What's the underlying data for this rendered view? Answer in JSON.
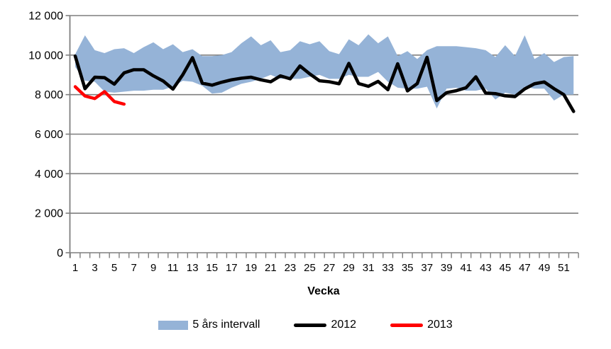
{
  "chart_data": {
    "type": "line",
    "title": "",
    "xlabel": "Vecka",
    "ylabel": "",
    "x_unit": "week",
    "x_range": [
      1,
      52
    ],
    "x_tick_labels": [
      "1",
      "3",
      "5",
      "7",
      "9",
      "11",
      "13",
      "15",
      "17",
      "19",
      "21",
      "23",
      "25",
      "27",
      "29",
      "31",
      "33",
      "35",
      "37",
      "39",
      "41",
      "43",
      "45",
      "47",
      "49",
      "51"
    ],
    "ylim": [
      0,
      12000
    ],
    "y_ticks": [
      {
        "value": 0,
        "label": "0"
      },
      {
        "value": 2000,
        "label": "2 000"
      },
      {
        "value": 4000,
        "label": "4 000"
      },
      {
        "value": 6000,
        "label": "6 000"
      },
      {
        "value": 8000,
        "label": "8 000"
      },
      {
        "value": 10000,
        "label": "10 000"
      },
      {
        "value": 12000,
        "label": "12 000"
      }
    ],
    "grid": true,
    "gridline_color": "#7F7F7F",
    "legend_position": "bottom",
    "series": [
      {
        "name": "5 års intervall",
        "type": "band",
        "color": "#95B3D7",
        "weeks": [
          1,
          2,
          3,
          4,
          5,
          6,
          7,
          8,
          9,
          10,
          11,
          12,
          13,
          14,
          15,
          16,
          17,
          18,
          19,
          20,
          21,
          22,
          23,
          24,
          25,
          26,
          27,
          28,
          29,
          30,
          31,
          32,
          33,
          34,
          35,
          36,
          37,
          38,
          39,
          40,
          41,
          42,
          43,
          44,
          45,
          46,
          47,
          48,
          49,
          50,
          51,
          52
        ],
        "lower": [
          9400,
          8700,
          8650,
          8150,
          8100,
          8150,
          8200,
          8200,
          8250,
          8250,
          8400,
          8700,
          8650,
          8450,
          8050,
          8100,
          8350,
          8550,
          8650,
          8800,
          9000,
          8800,
          8800,
          8800,
          8900,
          9000,
          8800,
          8800,
          9000,
          8900,
          8900,
          9150,
          8650,
          8350,
          8300,
          8300,
          8400,
          7300,
          8300,
          8350,
          8200,
          8200,
          8300,
          7750,
          8100,
          8000,
          8400,
          8300,
          8300,
          7700,
          8000,
          8000
        ],
        "upper": [
          10050,
          11000,
          10250,
          10100,
          10300,
          10350,
          10100,
          10400,
          10650,
          10300,
          10550,
          10150,
          10300,
          9950,
          9950,
          10000,
          10150,
          10600,
          10950,
          10500,
          10750,
          10150,
          10250,
          10700,
          10550,
          10700,
          10200,
          10050,
          10800,
          10500,
          11050,
          10600,
          10950,
          9950,
          10200,
          9800,
          10250,
          10450,
          10450,
          10450,
          10400,
          10350,
          10250,
          9900,
          10500,
          9950,
          11000,
          9800,
          10100,
          9650,
          9900,
          9950
        ]
      },
      {
        "name": "2012",
        "type": "line",
        "color": "#000000",
        "weeks": [
          1,
          2,
          3,
          4,
          5,
          6,
          7,
          8,
          9,
          10,
          11,
          12,
          13,
          14,
          15,
          16,
          17,
          18,
          19,
          20,
          21,
          22,
          23,
          24,
          25,
          26,
          27,
          28,
          29,
          30,
          31,
          32,
          33,
          34,
          35,
          36,
          37,
          38,
          39,
          40,
          41,
          42,
          43,
          44,
          45,
          46,
          47,
          48,
          49,
          50,
          51,
          52
        ],
        "values": [
          9950,
          8300,
          8880,
          8860,
          8530,
          9100,
          9260,
          9260,
          8950,
          8690,
          8280,
          9000,
          9870,
          8580,
          8480,
          8630,
          8750,
          8830,
          8880,
          8750,
          8650,
          8950,
          8800,
          9450,
          9050,
          8700,
          8650,
          8550,
          9580,
          8560,
          8420,
          8670,
          8250,
          9560,
          8190,
          8560,
          9890,
          7700,
          8100,
          8200,
          8350,
          8900,
          8080,
          8050,
          7940,
          7900,
          8290,
          8550,
          8640,
          8300,
          8000,
          7150
        ]
      },
      {
        "name": "2013",
        "type": "line",
        "color": "#FF0000",
        "weeks": [
          1,
          2,
          3,
          4,
          5,
          6
        ],
        "values": [
          8400,
          7930,
          7800,
          8150,
          7650,
          7520
        ]
      }
    ]
  },
  "legend": {
    "band_label": "5 års intervall",
    "line2012_label": "2012",
    "line2013_label": "2013"
  }
}
